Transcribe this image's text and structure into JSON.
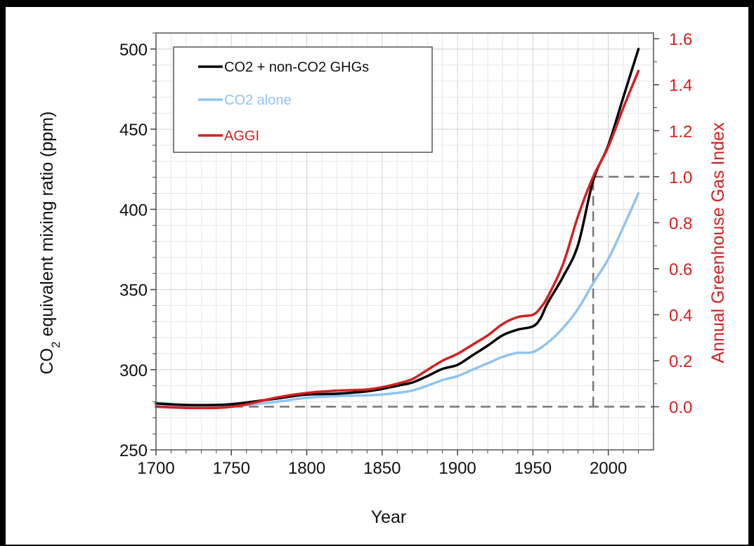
{
  "chart_data": {
    "type": "line",
    "title": "",
    "xlabel": "Year",
    "ylabel_left": {
      "prefix": "CO",
      "sub": "2",
      "suffix": " equivalent mixing ratio (ppm)"
    },
    "ylabel_right": "Annual Greenhouse Gas Index",
    "xlim": [
      1700,
      2030
    ],
    "ylim_left": [
      250,
      510
    ],
    "ylim_right_equiv": [
      -0.1875,
      1.625
    ],
    "x_ticks": [
      1700,
      1750,
      1800,
      1850,
      1900,
      1950,
      2000
    ],
    "y_ticks_left": [
      250,
      300,
      350,
      400,
      450,
      500
    ],
    "y_ticks_right": [
      "0.0",
      "0.2",
      "0.4",
      "0.6",
      "0.8",
      "1.0",
      "1.2",
      "1.4",
      "1.6"
    ],
    "grid": true,
    "legend_position": "top-left",
    "reference_lines": {
      "year": 1990,
      "co2_eq_ppm_at_year": 418,
      "aggi_baseline": 0.0,
      "aggi_reference": 1.0
    },
    "series": [
      {
        "name": "CO2 + non-CO2 GHGs",
        "axis": "left",
        "color": "#000000",
        "x": [
          1700,
          1720,
          1740,
          1750,
          1760,
          1780,
          1800,
          1820,
          1840,
          1850,
          1860,
          1870,
          1880,
          1890,
          1900,
          1910,
          1920,
          1930,
          1940,
          1950,
          1955,
          1960,
          1970,
          1980,
          1990,
          2000,
          2010,
          2020
        ],
        "values": [
          279,
          278,
          278,
          278.5,
          279.5,
          282,
          284.5,
          285,
          286.5,
          288,
          290,
          292,
          296,
          300.5,
          303,
          309,
          315,
          321.5,
          325,
          327,
          332,
          342,
          358,
          378,
          418,
          440,
          470,
          500
        ]
      },
      {
        "name": "CO2 alone",
        "axis": "left",
        "color": "#8fc4f0",
        "x": [
          1700,
          1720,
          1740,
          1750,
          1760,
          1780,
          1800,
          1820,
          1840,
          1850,
          1860,
          1870,
          1880,
          1890,
          1900,
          1910,
          1920,
          1930,
          1940,
          1950,
          1960,
          1970,
          1980,
          1990,
          2000,
          2010,
          2020
        ],
        "values": [
          278,
          277.5,
          277.5,
          277.5,
          278,
          280,
          282.5,
          283.5,
          284,
          284.5,
          285.5,
          287,
          290,
          293.5,
          296,
          300,
          304,
          308,
          310.5,
          311,
          317,
          326,
          338,
          354,
          369,
          389,
          410
        ]
      },
      {
        "name": "AGGI",
        "axis": "right",
        "color": "#d42020",
        "x": [
          1700,
          1720,
          1740,
          1750,
          1760,
          1780,
          1800,
          1820,
          1840,
          1850,
          1860,
          1870,
          1880,
          1890,
          1900,
          1910,
          1920,
          1930,
          1940,
          1950,
          1955,
          1960,
          1970,
          1980,
          1990,
          2000,
          2010,
          2020
        ],
        "values": [
          0.0,
          -0.005,
          -0.005,
          0.0,
          0.01,
          0.04,
          0.06,
          0.07,
          0.075,
          0.085,
          0.1,
          0.12,
          0.16,
          0.2,
          0.23,
          0.27,
          0.31,
          0.36,
          0.39,
          0.4,
          0.43,
          0.48,
          0.62,
          0.83,
          1.0,
          1.13,
          1.3,
          1.46
        ]
      }
    ]
  }
}
